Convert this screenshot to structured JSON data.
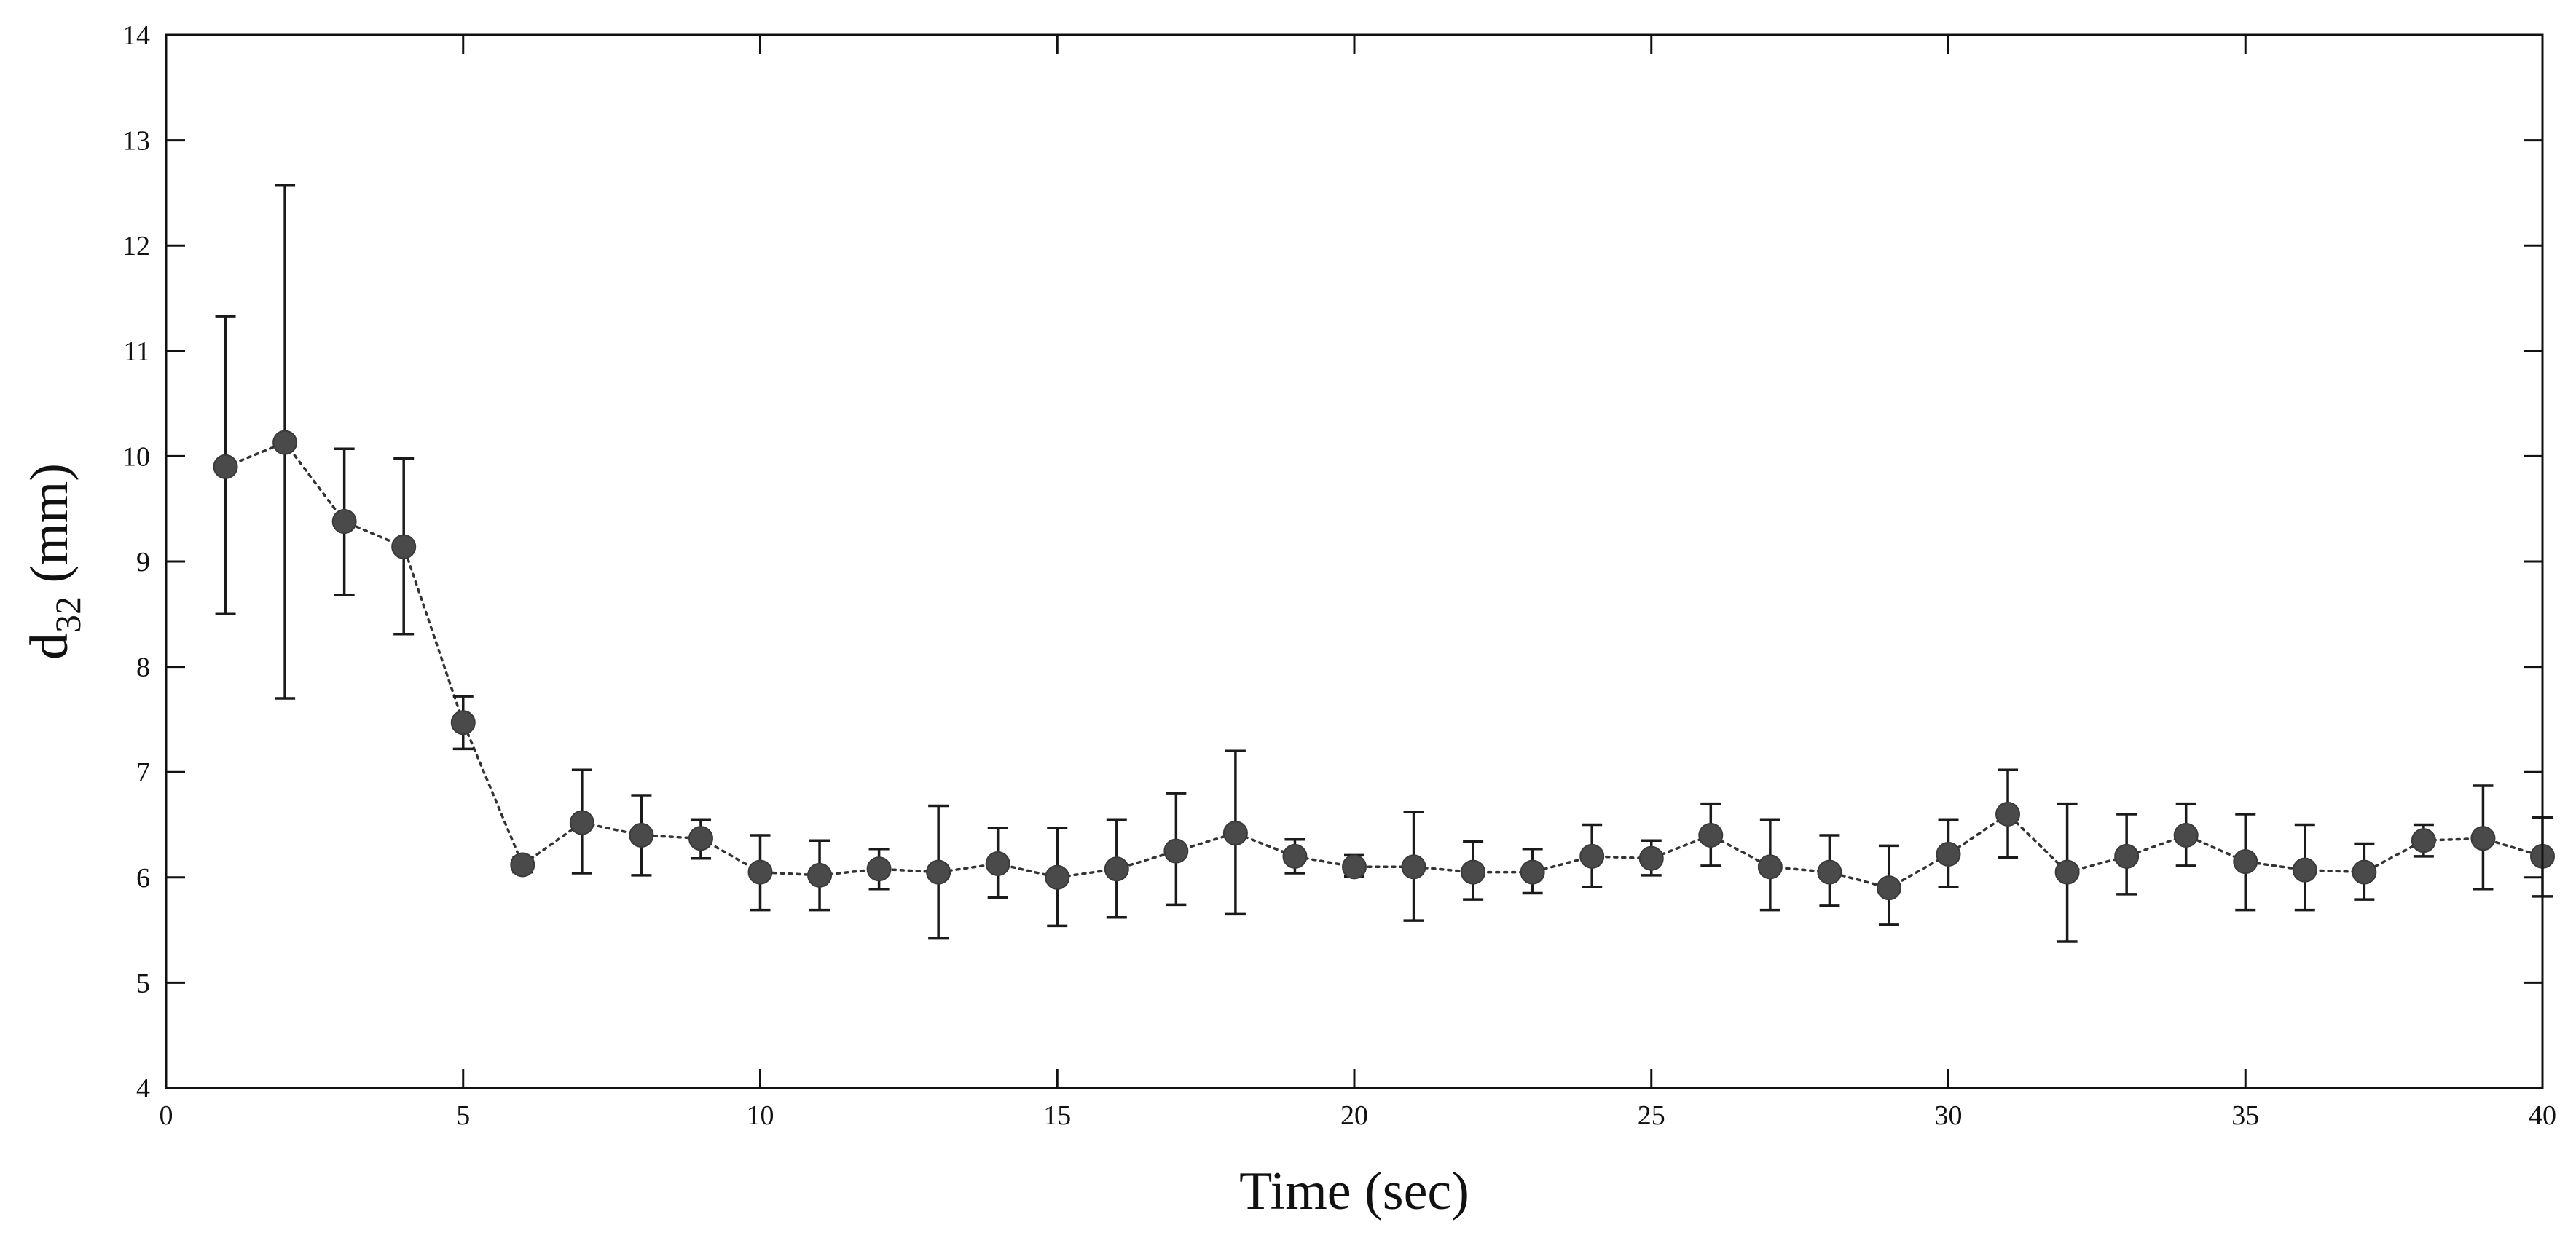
{
  "chart_data": {
    "type": "scatter",
    "title": "",
    "xlabel": "Time (sec)",
    "ylabel": {
      "base": "d",
      "subscript": "32",
      "unit": " (mm)"
    },
    "xlim": [
      0,
      40
    ],
    "ylim": [
      4,
      14
    ],
    "xticks": [
      0,
      5,
      10,
      15,
      20,
      25,
      30,
      35,
      40
    ],
    "yticks": [
      4,
      5,
      6,
      7,
      8,
      9,
      10,
      11,
      12,
      13,
      14
    ],
    "grid": false,
    "legend": "none",
    "series": [
      {
        "style": "dotted-line-with-markers-and-error-bars",
        "color": "#4a4a4a",
        "points": [
          {
            "x": 1,
            "y": 9.9,
            "low": 8.5,
            "high": 11.33
          },
          {
            "x": 2,
            "y": 10.13,
            "low": 7.7,
            "high": 12.57
          },
          {
            "x": 3,
            "y": 9.38,
            "low": 8.68,
            "high": 10.07
          },
          {
            "x": 4,
            "y": 9.14,
            "low": 8.31,
            "high": 9.98
          },
          {
            "x": 5,
            "y": 7.47,
            "low": 7.22,
            "high": 7.72
          },
          {
            "x": 6,
            "y": 6.12,
            "low": 6.05,
            "high": 6.19
          },
          {
            "x": 7,
            "y": 6.52,
            "low": 6.04,
            "high": 7.02
          },
          {
            "x": 8,
            "y": 6.4,
            "low": 6.02,
            "high": 6.78
          },
          {
            "x": 9,
            "y": 6.37,
            "low": 6.18,
            "high": 6.55
          },
          {
            "x": 10,
            "y": 6.05,
            "low": 5.69,
            "high": 6.4
          },
          {
            "x": 11,
            "y": 6.02,
            "low": 5.69,
            "high": 6.35
          },
          {
            "x": 12,
            "y": 6.08,
            "low": 5.89,
            "high": 6.27
          },
          {
            "x": 13,
            "y": 6.05,
            "low": 5.42,
            "high": 6.68
          },
          {
            "x": 14,
            "y": 6.13,
            "low": 5.81,
            "high": 6.47
          },
          {
            "x": 15,
            "y": 6.0,
            "low": 5.54,
            "high": 6.47
          },
          {
            "x": 16,
            "y": 6.08,
            "low": 5.62,
            "high": 6.55
          },
          {
            "x": 17,
            "y": 6.25,
            "low": 5.74,
            "high": 6.8
          },
          {
            "x": 18,
            "y": 6.42,
            "low": 5.65,
            "high": 7.2
          },
          {
            "x": 19,
            "y": 6.2,
            "low": 6.04,
            "high": 6.36
          },
          {
            "x": 20,
            "y": 6.1,
            "low": 6.01,
            "high": 6.21
          },
          {
            "x": 21,
            "y": 6.1,
            "low": 5.59,
            "high": 6.62
          },
          {
            "x": 22,
            "y": 6.05,
            "low": 5.79,
            "high": 6.34
          },
          {
            "x": 23,
            "y": 6.05,
            "low": 5.85,
            "high": 6.27
          },
          {
            "x": 24,
            "y": 6.2,
            "low": 5.91,
            "high": 6.5
          },
          {
            "x": 25,
            "y": 6.18,
            "low": 6.02,
            "high": 6.35
          },
          {
            "x": 26,
            "y": 6.4,
            "low": 6.11,
            "high": 6.7
          },
          {
            "x": 27,
            "y": 6.1,
            "low": 5.69,
            "high": 6.55
          },
          {
            "x": 28,
            "y": 6.05,
            "low": 5.73,
            "high": 6.4
          },
          {
            "x": 29,
            "y": 5.9,
            "low": 5.55,
            "high": 6.3
          },
          {
            "x": 30,
            "y": 6.22,
            "low": 5.91,
            "high": 6.55
          },
          {
            "x": 31,
            "y": 6.6,
            "low": 6.19,
            "high": 7.02
          },
          {
            "x": 32,
            "y": 6.05,
            "low": 5.39,
            "high": 6.7
          },
          {
            "x": 33,
            "y": 6.2,
            "low": 5.84,
            "high": 6.6
          },
          {
            "x": 34,
            "y": 6.4,
            "low": 6.11,
            "high": 6.7
          },
          {
            "x": 35,
            "y": 6.15,
            "low": 5.69,
            "high": 6.6
          },
          {
            "x": 36,
            "y": 6.07,
            "low": 5.69,
            "high": 6.5
          },
          {
            "x": 37,
            "y": 6.05,
            "low": 5.79,
            "high": 6.32
          },
          {
            "x": 38,
            "y": 6.35,
            "low": 6.2,
            "high": 6.5
          },
          {
            "x": 39,
            "y": 6.37,
            "low": 5.89,
            "high": 6.87
          },
          {
            "x": 40,
            "y": 6.2,
            "low": 5.82,
            "high": 6.57
          }
        ]
      }
    ]
  }
}
